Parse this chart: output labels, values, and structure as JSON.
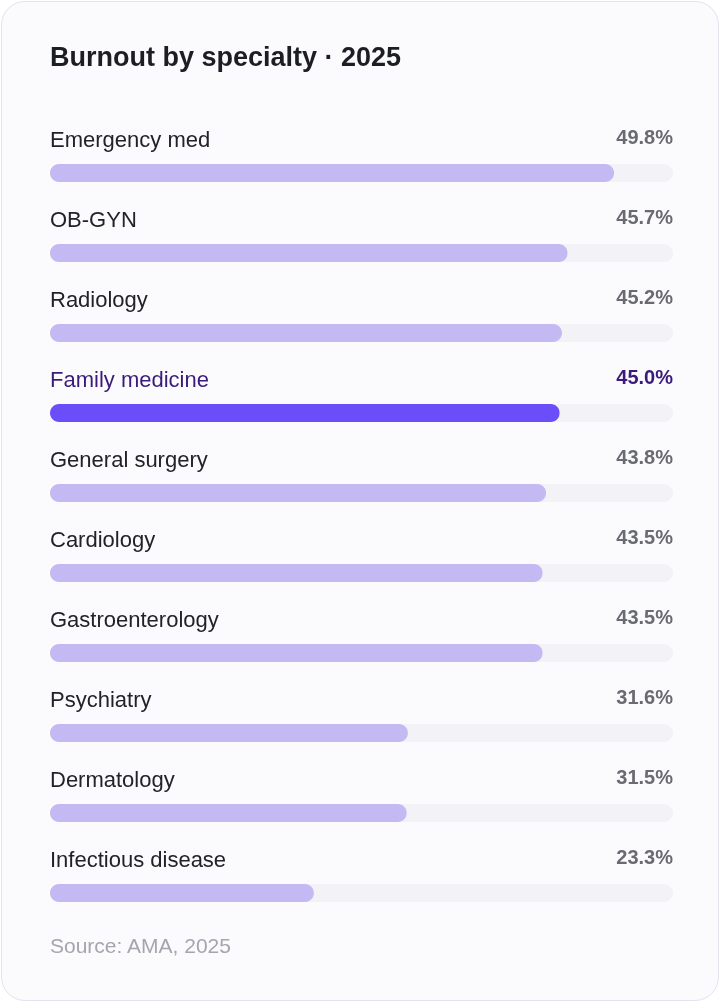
{
  "chart_data": {
    "type": "bar",
    "orientation": "horizontal",
    "title": "Burnout by specialty · 2025",
    "categories": [
      "Emergency med",
      "OB-GYN",
      "Radiology",
      "Family medicine",
      "General surgery",
      "Cardiology",
      "Gastroenterology",
      "Psychiatry",
      "Dermatology",
      "Infectious disease"
    ],
    "values": [
      49.8,
      45.7,
      45.2,
      45.0,
      43.8,
      43.5,
      43.5,
      31.6,
      31.5,
      23.3
    ],
    "value_labels": [
      "49.8%",
      "45.7%",
      "45.2%",
      "45.0%",
      "43.8%",
      "43.5%",
      "43.5%",
      "31.6%",
      "31.5%",
      "23.3%"
    ],
    "colors": [
      "#c5b9f3",
      "#c5b9f3",
      "#c5b9f3",
      "#6b4ef9",
      "#c5b9f3",
      "#c5b9f3",
      "#c5b9f3",
      "#c5b9f3",
      "#c5b9f3",
      "#c5b9f3"
    ],
    "xlim": [
      0,
      55
    ],
    "annotations": [
      "Source: AMA, 2025"
    ]
  }
}
